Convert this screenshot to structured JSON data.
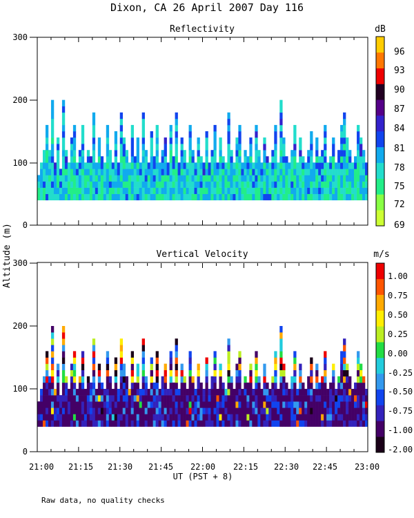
{
  "title": "Dixon, CA 26 April 2007  Day 116",
  "ylabel": "Altitude (m)",
  "xlabel": "UT  (PST + 8)",
  "footnote": "Raw data, no quality checks",
  "x_ticks": [
    "21:00",
    "21:15",
    "21:30",
    "21:45",
    "22:00",
    "22:15",
    "22:30",
    "22:45",
    "23:00"
  ],
  "chart_data": [
    {
      "type": "heatmap",
      "title": "Reflectivity",
      "unit": "dB",
      "x_range_minutes": [
        0,
        120
      ],
      "ylim": [
        0,
        300
      ],
      "y_ticks": [
        "0",
        "100",
        "200",
        "300"
      ],
      "data_altitude_min_m": 40,
      "column_top_altitudes_m": [
        80,
        100,
        120,
        160,
        120,
        200,
        100,
        140,
        90,
        200,
        120,
        100,
        140,
        160,
        100,
        120,
        160,
        100,
        120,
        110,
        180,
        100,
        140,
        110,
        100,
        160,
        120,
        100,
        150,
        100,
        180,
        140,
        120,
        100,
        160,
        110,
        140,
        100,
        180,
        120,
        100,
        150,
        110,
        160,
        100,
        120,
        140,
        100,
        160,
        110,
        180,
        100,
        140,
        120,
        100,
        160,
        120,
        100,
        140,
        110,
        100,
        150,
        100,
        120,
        160,
        100,
        140,
        110,
        100,
        180,
        120,
        100,
        140,
        160,
        100,
        120,
        110,
        140,
        100,
        160,
        120,
        100,
        140,
        110,
        100,
        120,
        160,
        100,
        200,
        140,
        110,
        100,
        120,
        160,
        100,
        140,
        110,
        100,
        120,
        150,
        100,
        140,
        110,
        120,
        160,
        100,
        110,
        140,
        100,
        120,
        160,
        180,
        140,
        120,
        100,
        110,
        160,
        140,
        120,
        100
      ],
      "colorbar_ticks": [
        "69",
        "72",
        "75",
        "78",
        "81",
        "84",
        "87",
        "90",
        "93",
        "96"
      ],
      "colorbar_colors": [
        "#ccff33",
        "#88ff44",
        "#22ee88",
        "#22ddcc",
        "#11aaee",
        "#1144ee",
        "#3322cc",
        "#550088",
        "#220022",
        "#ee0000",
        "#ff7700",
        "#ffcc00"
      ]
    },
    {
      "type": "heatmap",
      "title": "Vertical Velocity",
      "unit": "m/s",
      "x_range_minutes": [
        0,
        120
      ],
      "ylim": [
        0,
        300
      ],
      "y_ticks": [
        "0",
        "100",
        "200",
        "300"
      ],
      "data_altitude_min_m": 40,
      "column_top_altitudes_m": [
        80,
        100,
        120,
        160,
        120,
        200,
        100,
        140,
        90,
        200,
        120,
        100,
        140,
        160,
        100,
        120,
        160,
        100,
        120,
        110,
        180,
        100,
        140,
        110,
        100,
        160,
        120,
        100,
        150,
        100,
        180,
        140,
        120,
        100,
        160,
        110,
        140,
        100,
        180,
        120,
        100,
        150,
        110,
        160,
        100,
        120,
        140,
        100,
        160,
        110,
        180,
        100,
        140,
        120,
        100,
        160,
        120,
        100,
        140,
        110,
        100,
        150,
        100,
        120,
        160,
        100,
        140,
        110,
        100,
        180,
        120,
        100,
        140,
        160,
        100,
        120,
        110,
        140,
        100,
        160,
        120,
        100,
        140,
        110,
        100,
        120,
        160,
        100,
        200,
        140,
        110,
        100,
        120,
        160,
        100,
        140,
        110,
        100,
        120,
        150,
        100,
        140,
        110,
        120,
        160,
        100,
        110,
        140,
        100,
        120,
        160,
        180,
        140,
        120,
        100,
        110,
        160,
        140,
        120,
        100
      ],
      "colorbar_ticks": [
        "-2.00",
        "-1.00",
        "-0.75",
        "-0.50",
        "-0.25",
        "0.00",
        "0.25",
        "0.50",
        "0.75",
        "1.00"
      ],
      "colorbar_colors": [
        "#1a0018",
        "#440066",
        "#3322bb",
        "#1144ee",
        "#3399ee",
        "#22ccdd",
        "#22dd44",
        "#bbee22",
        "#ffee00",
        "#ffaa00",
        "#ff5500",
        "#ee0000"
      ]
    }
  ]
}
